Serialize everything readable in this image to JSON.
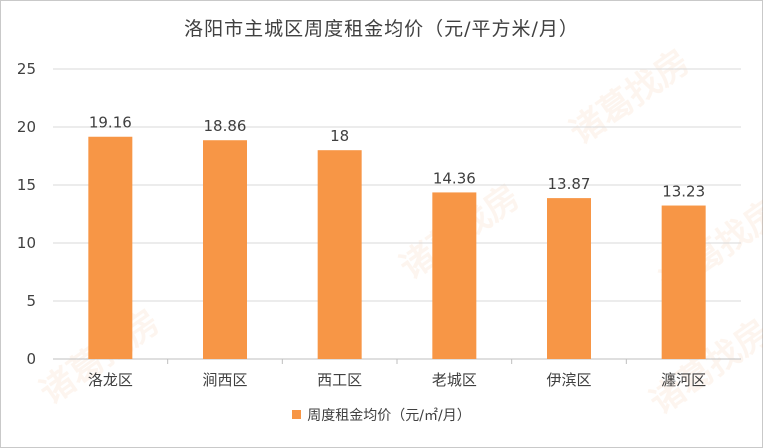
{
  "chart_data": {
    "type": "bar",
    "title": "洛阳市主城区周度租金均价（元/平方米/月）",
    "categories": [
      "洛龙区",
      "涧西区",
      "西工区",
      "老城区",
      "伊滨区",
      "瀍河区"
    ],
    "values": [
      19.16,
      18.86,
      18,
      14.36,
      13.87,
      13.23
    ],
    "value_labels": [
      "19.16",
      "18.86",
      "18",
      "14.36",
      "13.87",
      "13.23"
    ],
    "series": [
      {
        "name": "周度租金均价（元/㎡/月）",
        "values": [
          19.16,
          18.86,
          18,
          14.36,
          13.87,
          13.23
        ]
      }
    ],
    "ylim": [
      0,
      25
    ],
    "yticks": [
      0,
      5,
      10,
      15,
      20,
      25
    ],
    "grid": true,
    "legend_position": "bottom",
    "bar_color": "#F79646"
  },
  "watermark": "诸葛找房"
}
